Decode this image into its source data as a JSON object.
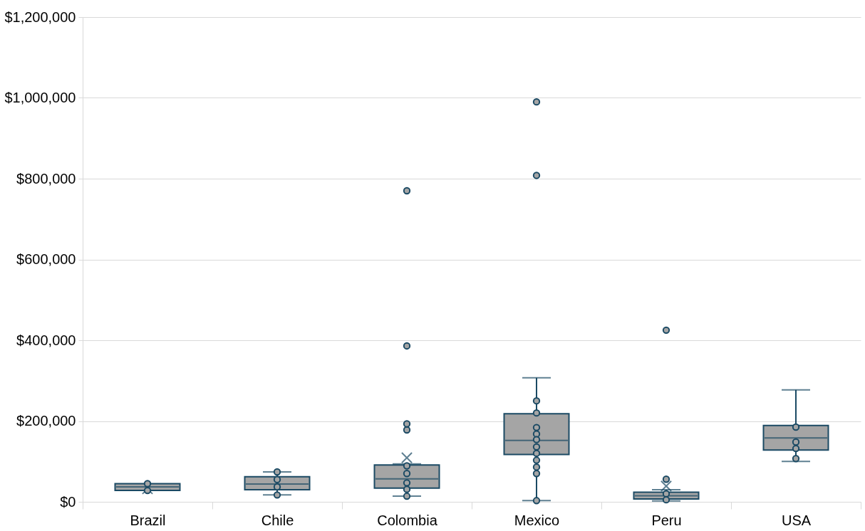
{
  "chart_data": {
    "type": "box",
    "categories": [
      "Brazil",
      "Chile",
      "Colombia",
      "Mexico",
      "Peru",
      "USA"
    ],
    "color": "#a5a5a5",
    "boxes": [
      {
        "low": 28000,
        "q1": 28000,
        "median": 37000,
        "q3": 45000,
        "high": 45000,
        "mean": 32000
      },
      {
        "low": 17000,
        "q1": 30000,
        "median": 44000,
        "q3": 62000,
        "high": 74000,
        "mean": 45000
      },
      {
        "low": 14000,
        "q1": 34000,
        "median": 57000,
        "q3": 91000,
        "high": 94000,
        "mean": 109000,
        "outliers": [
          178000,
          193000,
          386000,
          770000
        ]
      },
      {
        "low": 3000,
        "q1": 117000,
        "median": 152000,
        "q3": 218000,
        "high": 307000,
        "mean": 203000,
        "outliers": [
          808000,
          990000
        ]
      },
      {
        "low": 2000,
        "q1": 7000,
        "median": 15000,
        "q3": 24000,
        "high": 30000,
        "mean": 39000,
        "outliers": [
          56000,
          425000
        ]
      },
      {
        "low": 100000,
        "q1": 128000,
        "median": 158000,
        "q3": 189000,
        "high": 277000,
        "mean": 166000
      }
    ],
    "series": [
      {
        "type": "scatter",
        "color": "#a5a5a5",
        "x": [
          "Brazil",
          "Brazil",
          "Chile",
          "Chile",
          "Chile",
          "Chile",
          "Colombia",
          "Colombia",
          "Colombia",
          "Colombia",
          "Colombia",
          "Mexico",
          "Mexico",
          "Mexico",
          "Mexico",
          "Mexico",
          "Mexico",
          "Mexico",
          "Mexico",
          "Mexico",
          "Mexico",
          "Mexico",
          "Peru",
          "Peru",
          "USA",
          "USA",
          "USA",
          "USA"
        ],
        "values": [
          45000,
          28000,
          74000,
          55000,
          37000,
          17000,
          89000,
          70000,
          47000,
          31000,
          14000,
          250000,
          220000,
          184000,
          168000,
          154000,
          136000,
          120000,
          103000,
          86000,
          70000,
          3000,
          20000,
          5000,
          185000,
          148000,
          132000,
          107000
        ]
      }
    ],
    "marker": "circle",
    "ylim": [
      0,
      1200000
    ],
    "yticks": [
      {
        "value": 0,
        "label": "$0"
      },
      {
        "value": 200000,
        "label": "$200,000"
      },
      {
        "value": 400000,
        "label": "$400,000"
      },
      {
        "value": 600000,
        "label": "$600,000"
      },
      {
        "value": 800000,
        "label": "$800,000"
      },
      {
        "value": 1000000,
        "label": "$1,000,000"
      },
      {
        "value": 1200000,
        "label": "$1,200,000"
      }
    ],
    "grid": "y"
  }
}
